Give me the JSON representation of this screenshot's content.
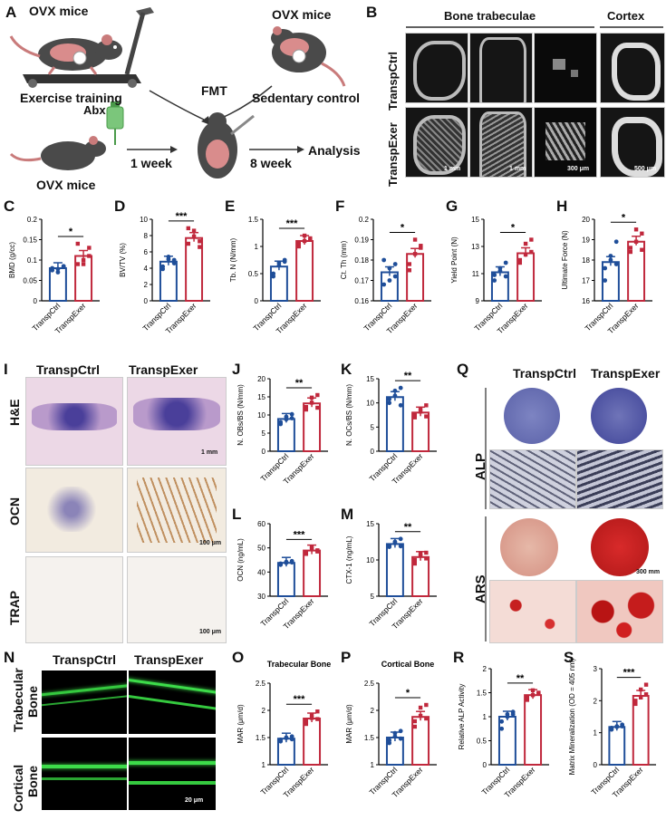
{
  "panels": {
    "A": "A",
    "B": "B",
    "C": "C",
    "D": "D",
    "E": "E",
    "F": "F",
    "G": "G",
    "H": "H",
    "I": "I",
    "J": "J",
    "K": "K",
    "L": "L",
    "M": "M",
    "N": "N",
    "O": "O",
    "P": "P",
    "Q": "Q",
    "R": "R",
    "S": "S"
  },
  "schematic": {
    "ovx_top": "OVX mice",
    "exercise": "Exercise training",
    "ovx_right": "OVX mice",
    "sedentary": "Sedentary control",
    "fmt": "FMT",
    "abx": "Abx",
    "ovx_bottom": "OVX mice",
    "week1": "1 week",
    "week8": "8 week",
    "analysis": "Analysis"
  },
  "panelB": {
    "trabeculae": "Bone trabeculae",
    "cortex": "Cortex",
    "row1": "TranspCtrl",
    "row2": "TranspExer",
    "sb1": "1 mm",
    "sb2": "1 mm",
    "sb3": "300 μm",
    "sb4": "500 μm"
  },
  "panelI": {
    "col1": "TranspCtrl",
    "col2": "TranspExer",
    "he": "H&E",
    "ocn": "OCN",
    "trap": "TRAP",
    "sb_he": "1 mm",
    "sb_ocn": "100 μm",
    "sb_trap": "100 μm"
  },
  "panelQ": {
    "col1": "TranspCtrl",
    "col2": "TranspExer",
    "alp": "ALP",
    "ars": "ARS",
    "sb": "300 mm"
  },
  "panelN": {
    "col1": "TranspCtrl",
    "col2": "TranspExer",
    "row1a": "Trabecular",
    "row1b": "Bone",
    "row2a": "Cortical",
    "row2b": "Bone",
    "sb": "20 μm"
  },
  "colors": {
    "ctrl": "#1f4e99",
    "exer": "#c0283c",
    "fluor": "#3ddc4a"
  },
  "chart_data": [
    {
      "id": "C",
      "type": "bar",
      "categories": [
        "TranspCtrl",
        "TranspExer"
      ],
      "values": [
        0.08,
        0.11
      ],
      "ylabel": "BMD (g/cc)",
      "ylim": [
        0,
        0.2
      ],
      "ticks": [
        0.0,
        0.05,
        0.1,
        0.15,
        0.2
      ],
      "sig": "*",
      "points": [
        [
          0.075,
          0.07,
          0.085,
          0.08,
          0.078,
          0.083
        ],
        [
          0.09,
          0.1,
          0.13,
          0.14,
          0.09,
          0.11
        ]
      ]
    },
    {
      "id": "D",
      "type": "bar",
      "categories": [
        "TranspCtrl",
        "TranspExer"
      ],
      "values": [
        4.8,
        7.7
      ],
      "ylabel": "BV/TV (%)",
      "ylim": [
        0,
        10
      ],
      "ticks": [
        0,
        2,
        4,
        6,
        8,
        10
      ],
      "sig": "***",
      "points": [
        [
          4.2,
          5.1,
          4.6,
          3.9,
          5.4,
          5.0
        ],
        [
          7.0,
          8.6,
          6.6,
          8.9,
          7.9,
          7.3
        ]
      ]
    },
    {
      "id": "E",
      "type": "bar",
      "categories": [
        "TranspCtrl",
        "TranspExer"
      ],
      "values": [
        0.63,
        1.1
      ],
      "ylabel": "Tb. N (N/mm)",
      "ylim": [
        0,
        1.5
      ],
      "ticks": [
        0.0,
        0.5,
        1.0,
        1.5
      ],
      "sig": "***",
      "points": [
        [
          0.5,
          0.7,
          0.75,
          0.45,
          0.65,
          0.72
        ],
        [
          1.0,
          1.2,
          1.15,
          1.05,
          1.1,
          1.12
        ]
      ]
    },
    {
      "id": "F",
      "type": "bar",
      "categories": [
        "TranspCtrl",
        "TranspExer"
      ],
      "values": [
        0.174,
        0.183
      ],
      "ylabel": "Ct. Th (mm)",
      "ylim": [
        0.16,
        0.2
      ],
      "ticks": [
        0.16,
        0.17,
        0.18,
        0.19,
        0.2
      ],
      "sig": "*",
      "points": [
        [
          0.168,
          0.176,
          0.172,
          0.18,
          0.17,
          0.178
        ],
        [
          0.178,
          0.19,
          0.186,
          0.175,
          0.183,
          0.187
        ]
      ]
    },
    {
      "id": "G",
      "type": "bar",
      "categories": [
        "TranspCtrl",
        "TranspExer"
      ],
      "values": [
        11.1,
        12.5
      ],
      "ylabel": "Yield Point (N)",
      "ylim": [
        9,
        15
      ],
      "ticks": [
        9,
        11,
        13,
        15
      ],
      "sig": "*",
      "points": [
        [
          10.5,
          11.4,
          11.8,
          10.9,
          11.2,
          10.8
        ],
        [
          11.8,
          13.2,
          13.5,
          12.0,
          12.4,
          12.6
        ]
      ]
    },
    {
      "id": "H",
      "type": "bar",
      "categories": [
        "TranspCtrl",
        "TranspExer"
      ],
      "values": [
        17.9,
        18.9
      ],
      "ylabel": "Ultimate Force (N)",
      "ylim": [
        16,
        20
      ],
      "ticks": [
        16,
        17,
        18,
        19,
        20
      ],
      "sig": "*",
      "points": [
        [
          17.0,
          18.2,
          18.9,
          17.6,
          18.0,
          17.8
        ],
        [
          18.4,
          19.5,
          19.3,
          18.6,
          18.9,
          18.5
        ]
      ]
    },
    {
      "id": "J",
      "type": "bar",
      "categories": [
        "TranspCtrl",
        "TranspExer"
      ],
      "values": [
        8.9,
        13.2
      ],
      "ylabel": "N. OBs/BS (N/mm)",
      "ylim": [
        0,
        20
      ],
      "ticks": [
        0,
        5,
        10,
        15,
        20
      ],
      "sig": "**",
      "points": [
        [
          7.5,
          9.5,
          10.2,
          8.0,
          8.8,
          9.1
        ],
        [
          11.5,
          14.8,
          15.5,
          12.2,
          13.4,
          12.0
        ]
      ]
    },
    {
      "id": "K",
      "type": "bar",
      "categories": [
        "TranspCtrl",
        "TranspExer"
      ],
      "values": [
        11.2,
        8.0
      ],
      "ylabel": "N. OCs/BS (N/mm)",
      "ylim": [
        0,
        15
      ],
      "ticks": [
        0,
        5,
        10,
        15
      ],
      "sig": "**",
      "points": [
        [
          10.0,
          12.5,
          13.1,
          10.8,
          11.5,
          9.5
        ],
        [
          7.0,
          8.8,
          9.5,
          7.5,
          8.2,
          7.2
        ]
      ]
    },
    {
      "id": "L",
      "type": "bar",
      "categories": [
        "TranspCtrl",
        "TranspExer"
      ],
      "values": [
        43.8,
        48.9
      ],
      "ylabel": "OCN (ng/mL)",
      "ylim": [
        30,
        60
      ],
      "ticks": [
        30,
        40,
        50,
        60
      ],
      "sig": "***",
      "points": [
        [
          43.0,
          44.2,
          44.5,
          43.5,
          43.8,
          44.0
        ],
        [
          47.5,
          50.5,
          49.0,
          47.8,
          49.5,
          48.5
        ]
      ]
    },
    {
      "id": "M",
      "type": "bar",
      "categories": [
        "TranspCtrl",
        "TranspExer"
      ],
      "values": [
        12.2,
        10.4
      ],
      "ylabel": "CTX-1 (ng/mL)",
      "ylim": [
        5,
        15
      ],
      "ticks": [
        5,
        10,
        15
      ],
      "sig": "**",
      "points": [
        [
          11.8,
          12.5,
          12.9,
          12.0,
          12.3,
          11.9
        ],
        [
          9.5,
          10.8,
          11.0,
          10.0,
          10.6,
          10.2
        ]
      ]
    },
    {
      "id": "O",
      "type": "bar",
      "title": "Trabecular Bone",
      "categories": [
        "TranspCtrl",
        "TranspExer"
      ],
      "values": [
        1.48,
        1.85
      ],
      "ylabel": "MAR (μm/d)",
      "ylim": [
        1.0,
        2.5
      ],
      "ticks": [
        1.0,
        1.5,
        2.0,
        2.5
      ],
      "sig": "***",
      "points": [
        [
          1.43,
          1.5,
          1.52,
          1.46,
          1.49,
          1.47
        ],
        [
          1.75,
          1.92,
          1.98,
          1.8,
          1.86,
          1.84
        ]
      ]
    },
    {
      "id": "P",
      "type": "bar",
      "title": "Cortical Bone",
      "categories": [
        "TranspCtrl",
        "TranspExer"
      ],
      "values": [
        1.5,
        1.88
      ],
      "ylabel": "MAR (μm/d)",
      "ylim": [
        1.0,
        2.5
      ],
      "ticks": [
        1.0,
        1.5,
        2.0,
        2.5
      ],
      "sig": "*",
      "points": [
        [
          1.4,
          1.58,
          1.62,
          1.45,
          1.52,
          1.48
        ],
        [
          1.7,
          2.05,
          2.1,
          1.8,
          1.9,
          1.85
        ]
      ]
    },
    {
      "id": "R",
      "type": "bar",
      "categories": [
        "TranspCtrl",
        "TranspExer"
      ],
      "values": [
        1.0,
        1.45
      ],
      "ylabel": "Relative ALP Activity",
      "ylim": [
        0,
        2.0
      ],
      "ticks": [
        0.0,
        0.5,
        1.0,
        1.5,
        2.0
      ],
      "sig": "**",
      "points": [
        [
          0.75,
          1.05,
          1.1,
          0.9,
          1.0,
          1.05
        ],
        [
          1.35,
          1.55,
          1.5,
          1.4,
          1.45,
          1.48
        ]
      ]
    },
    {
      "id": "S",
      "type": "bar",
      "categories": [
        "TranspCtrl",
        "TranspExer"
      ],
      "values": [
        1.18,
        2.15
      ],
      "ylabel": "Matrix Mineralization (OD = 405 nm)",
      "ylim": [
        0,
        3
      ],
      "ticks": [
        0,
        1,
        2,
        3
      ],
      "sig": "***",
      "points": [
        [
          1.1,
          1.2,
          1.25,
          1.15,
          1.18,
          1.2
        ],
        [
          1.9,
          2.35,
          2.5,
          2.0,
          2.1,
          2.2
        ]
      ]
    }
  ]
}
